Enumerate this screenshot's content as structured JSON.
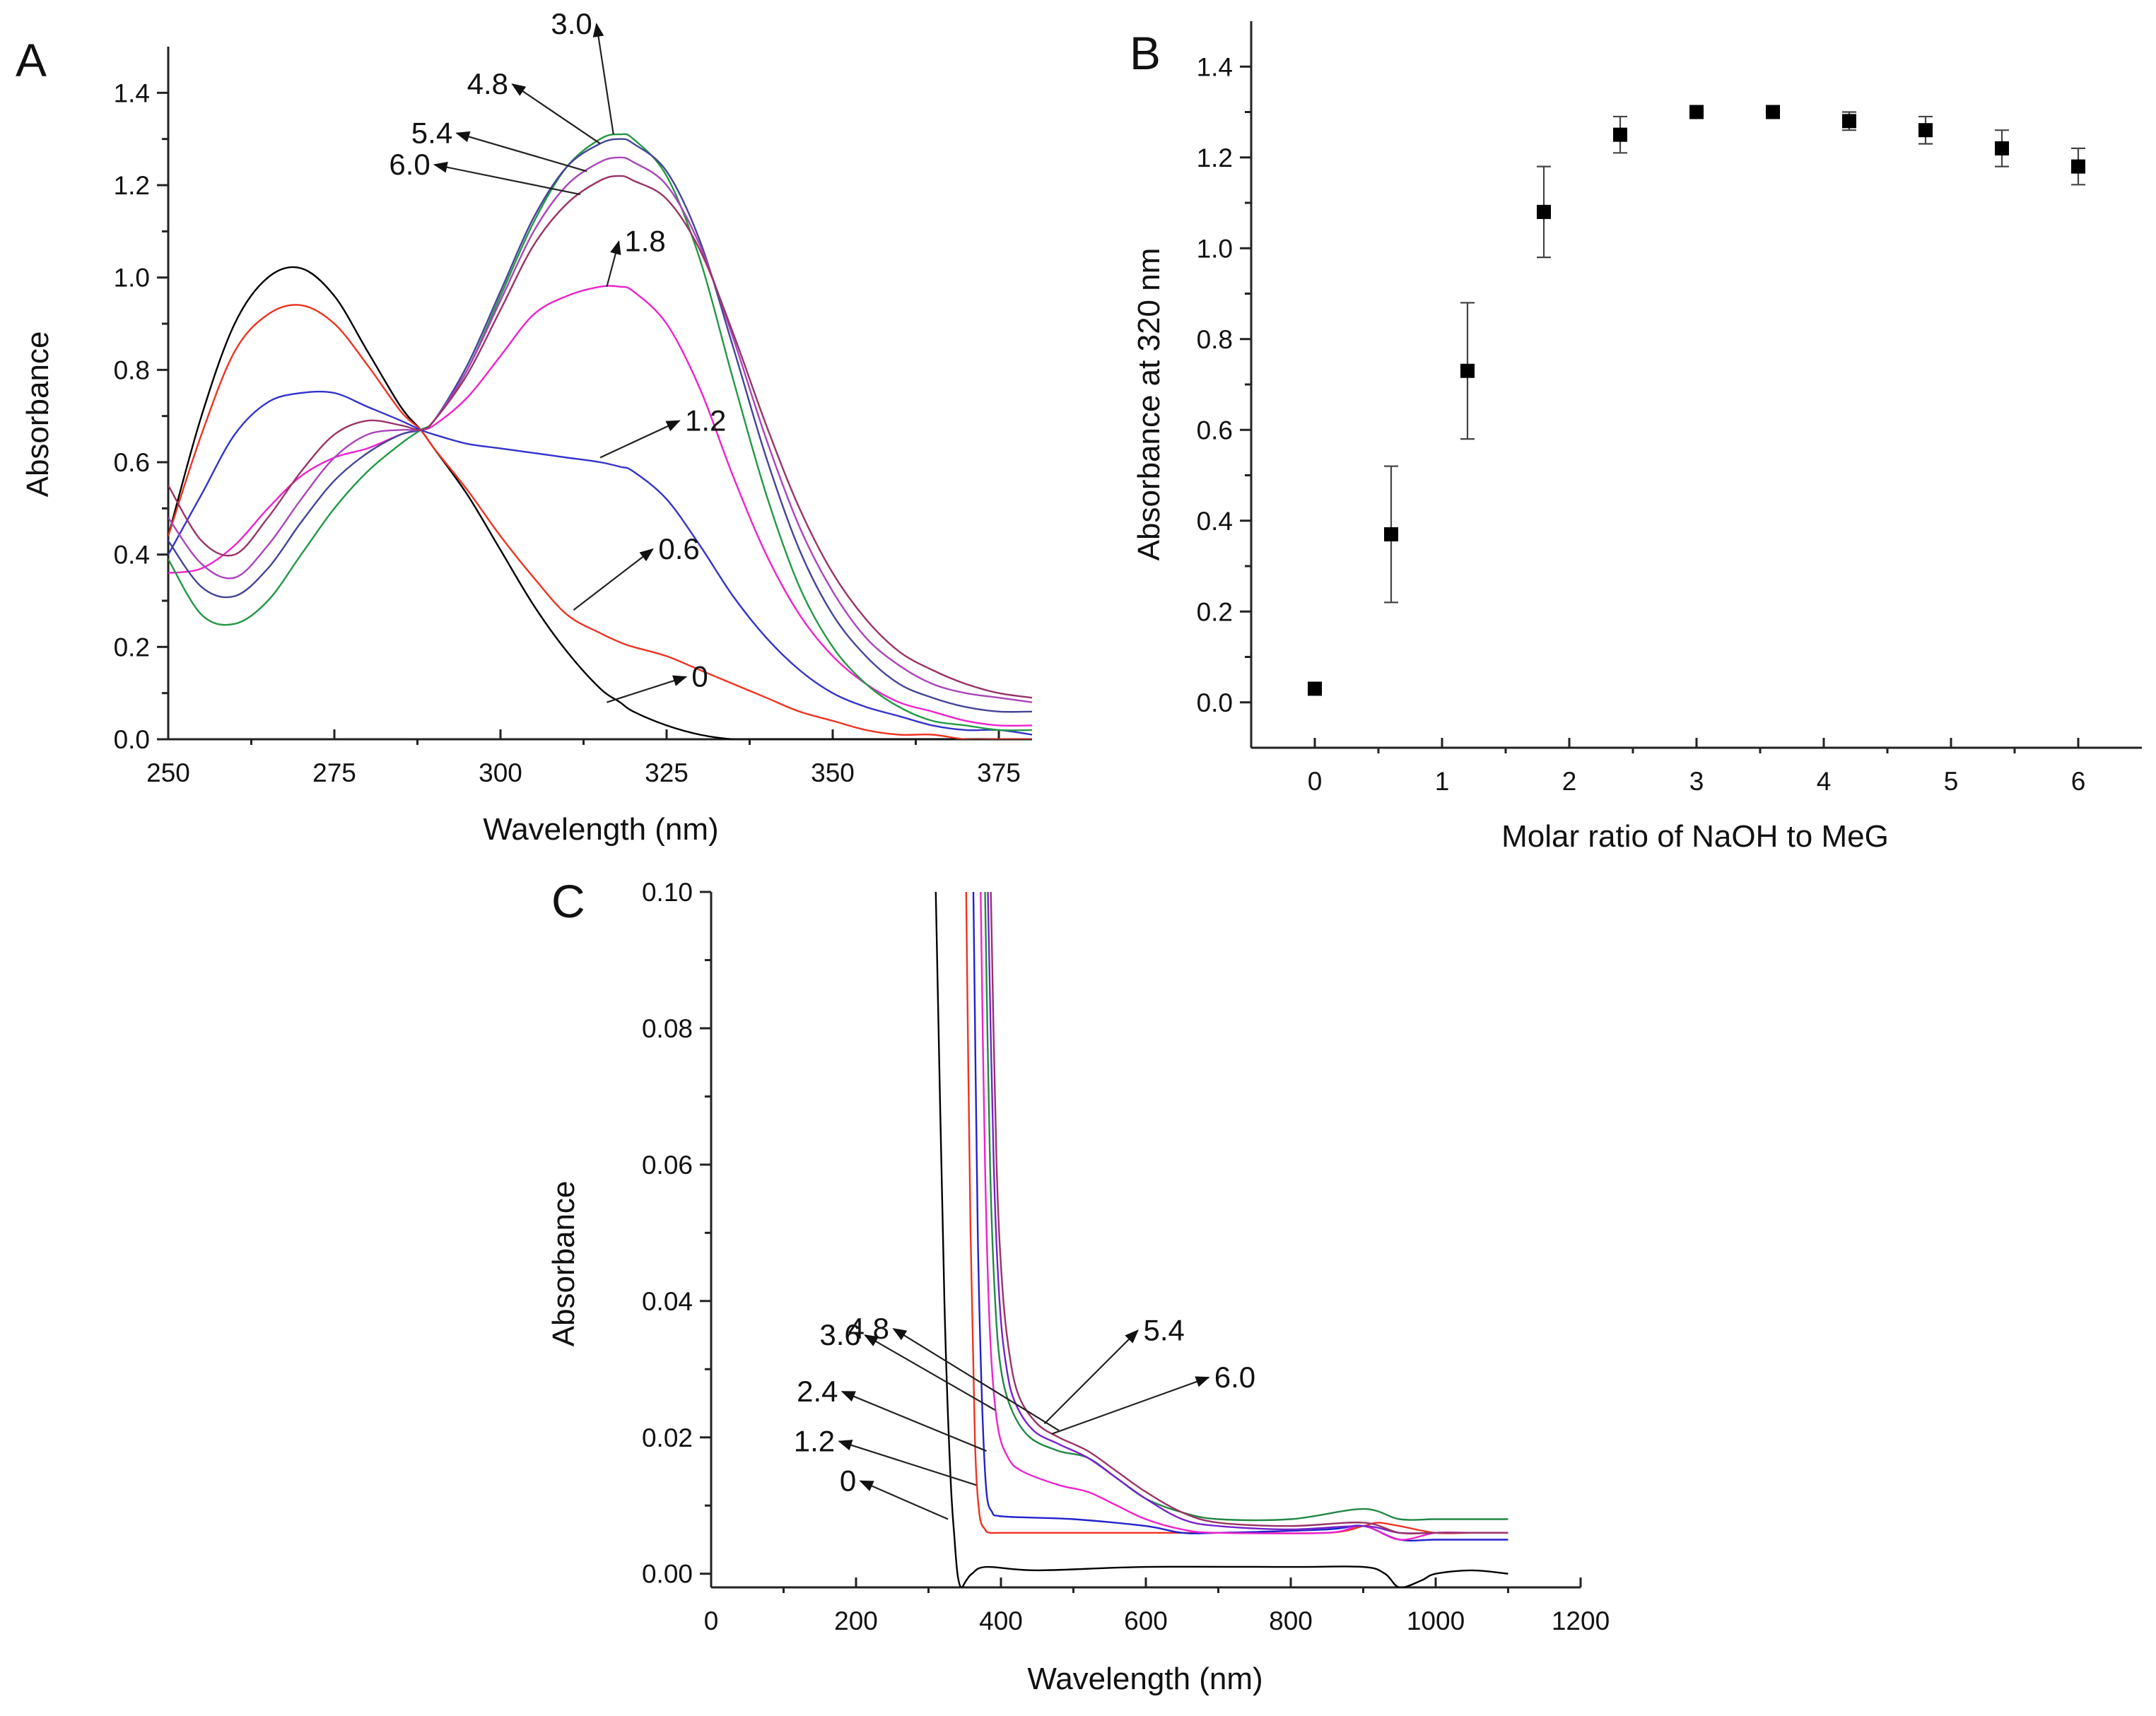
{
  "chart_data": [
    {
      "panel": "A",
      "type": "line",
      "xlabel": "Wavelength (nm)",
      "ylabel": "Absorbance",
      "xlim": [
        250,
        380
      ],
      "ylim": [
        0,
        1.5
      ],
      "xticks": [
        250,
        275,
        300,
        325,
        350,
        375
      ],
      "yticks": [
        0.0,
        0.2,
        0.4,
        0.6,
        0.8,
        1.0,
        1.2,
        1.4
      ],
      "x": [
        250,
        255,
        260,
        265,
        270,
        275,
        280,
        285,
        288,
        290,
        295,
        300,
        305,
        310,
        315,
        318,
        320,
        325,
        330,
        335,
        340,
        345,
        350,
        355,
        360,
        365,
        370,
        375,
        380
      ],
      "series": [
        {
          "name": "0",
          "color": "#000000",
          "values": [
            0.44,
            0.7,
            0.9,
            1.0,
            1.02,
            0.96,
            0.84,
            0.72,
            0.67,
            0.63,
            0.53,
            0.41,
            0.29,
            0.19,
            0.11,
            0.08,
            0.06,
            0.03,
            0.01,
            0.0,
            0.0,
            0.0,
            0.0,
            0.0,
            0.0,
            0.0,
            0.0,
            0.0,
            0.0
          ]
        },
        {
          "name": "0.6",
          "color": "#ee3322",
          "values": [
            0.44,
            0.66,
            0.84,
            0.92,
            0.94,
            0.9,
            0.81,
            0.71,
            0.67,
            0.63,
            0.54,
            0.44,
            0.35,
            0.27,
            0.23,
            0.21,
            0.2,
            0.18,
            0.15,
            0.12,
            0.09,
            0.06,
            0.04,
            0.02,
            0.01,
            0.01,
            0.0,
            0.0,
            0.0
          ]
        },
        {
          "name": "1.2",
          "color": "#3333cc",
          "values": [
            0.4,
            0.53,
            0.66,
            0.73,
            0.75,
            0.75,
            0.72,
            0.69,
            0.67,
            0.66,
            0.64,
            0.63,
            0.62,
            0.61,
            0.6,
            0.59,
            0.58,
            0.52,
            0.42,
            0.31,
            0.22,
            0.15,
            0.1,
            0.07,
            0.05,
            0.03,
            0.02,
            0.02,
            0.01
          ]
        },
        {
          "name": "1.8",
          "color": "#ee22cc",
          "values": [
            0.36,
            0.37,
            0.42,
            0.5,
            0.57,
            0.61,
            0.63,
            0.66,
            0.67,
            0.68,
            0.74,
            0.83,
            0.92,
            0.96,
            0.98,
            0.98,
            0.97,
            0.9,
            0.76,
            0.57,
            0.4,
            0.27,
            0.18,
            0.12,
            0.08,
            0.06,
            0.04,
            0.03,
            0.03
          ]
        },
        {
          "name": "3.0",
          "color": "#229944",
          "values": [
            0.39,
            0.27,
            0.25,
            0.3,
            0.4,
            0.5,
            0.58,
            0.64,
            0.67,
            0.69,
            0.8,
            0.96,
            1.12,
            1.24,
            1.3,
            1.31,
            1.3,
            1.22,
            1.04,
            0.78,
            0.53,
            0.33,
            0.2,
            0.12,
            0.07,
            0.04,
            0.03,
            0.02,
            0.02
          ]
        },
        {
          "name": "4.8",
          "color": "#444499",
          "values": [
            0.43,
            0.33,
            0.31,
            0.37,
            0.47,
            0.56,
            0.62,
            0.66,
            0.67,
            0.69,
            0.81,
            0.97,
            1.13,
            1.24,
            1.29,
            1.3,
            1.29,
            1.23,
            1.08,
            0.85,
            0.61,
            0.41,
            0.27,
            0.18,
            0.12,
            0.09,
            0.07,
            0.06,
            0.06
          ]
        },
        {
          "name": "5.4",
          "color": "#aa44bb",
          "values": [
            0.48,
            0.38,
            0.35,
            0.42,
            0.52,
            0.61,
            0.66,
            0.67,
            0.67,
            0.69,
            0.8,
            0.95,
            1.1,
            1.2,
            1.25,
            1.26,
            1.25,
            1.2,
            1.07,
            0.87,
            0.65,
            0.46,
            0.32,
            0.22,
            0.16,
            0.12,
            0.1,
            0.09,
            0.08
          ]
        },
        {
          "name": "6.0",
          "color": "#993366",
          "values": [
            0.55,
            0.43,
            0.4,
            0.48,
            0.58,
            0.66,
            0.69,
            0.68,
            0.67,
            0.69,
            0.79,
            0.93,
            1.07,
            1.16,
            1.21,
            1.22,
            1.21,
            1.17,
            1.06,
            0.88,
            0.68,
            0.5,
            0.36,
            0.26,
            0.19,
            0.15,
            0.12,
            0.1,
            0.09
          ]
        }
      ],
      "annotations": [
        {
          "text": "3.0",
          "target_x": 317,
          "target_y": 1.31
        },
        {
          "text": "4.8",
          "target_x": 315,
          "target_y": 1.29
        },
        {
          "text": "5.4",
          "target_x": 313,
          "target_y": 1.23
        },
        {
          "text": "6.0",
          "target_x": 312,
          "target_y": 1.18
        },
        {
          "text": "1.8",
          "target_x": 316,
          "target_y": 0.98
        },
        {
          "text": "1.2",
          "target_x": 315,
          "target_y": 0.61
        },
        {
          "text": "0.6",
          "target_x": 311,
          "target_y": 0.28
        },
        {
          "text": "0",
          "target_x": 316,
          "target_y": 0.08
        }
      ]
    },
    {
      "panel": "B",
      "type": "scatter",
      "xlabel": "Molar ratio of NaOH to MeG",
      "ylabel": "Absorbance at 320 nm",
      "xlim": [
        -0.5,
        6.5
      ],
      "ylim": [
        -0.1,
        1.5
      ],
      "xticks": [
        0,
        1,
        2,
        3,
        4,
        5,
        6
      ],
      "yticks": [
        0.0,
        0.2,
        0.4,
        0.6,
        0.8,
        1.0,
        1.2,
        1.4
      ],
      "x": [
        0,
        0.6,
        1.2,
        1.8,
        2.4,
        3.0,
        3.6,
        4.2,
        4.8,
        5.4,
        6.0
      ],
      "values": [
        0.03,
        0.37,
        0.73,
        1.08,
        1.25,
        1.3,
        1.3,
        1.28,
        1.26,
        1.22,
        1.18
      ],
      "errors": [
        0.0,
        0.15,
        0.15,
        0.1,
        0.04,
        0.0,
        0.0,
        0.02,
        0.03,
        0.04,
        0.04
      ]
    },
    {
      "panel": "C",
      "type": "line",
      "xlabel": "Wavelength (nm)",
      "ylabel": "Absorbance",
      "xlim": [
        0,
        1200
      ],
      "ylim": [
        -0.002,
        0.1
      ],
      "xticks": [
        0,
        200,
        400,
        600,
        800,
        1000,
        1200
      ],
      "yticks": [
        0.0,
        0.02,
        0.04,
        0.06,
        0.08,
        0.1
      ],
      "series": [
        {
          "name": "0",
          "color": "#000000",
          "x": [
            310,
            322,
            330,
            336,
            340,
            345,
            352,
            360,
            380,
            450,
            600,
            800,
            900,
            930,
            950,
            980,
            1000,
            1050,
            1100
          ],
          "values": [
            0.1,
            0.04,
            0.015,
            0.005,
            0.0,
            -0.002,
            -0.001,
            0.0,
            0.001,
            0.0005,
            0.001,
            0.001,
            0.001,
            0.0,
            -0.002,
            -0.001,
            0.0,
            0.0005,
            0.0
          ]
        },
        {
          "name": "1.2",
          "color": "#ee3322",
          "x": [
            352,
            358,
            364,
            370,
            378,
            385,
            400,
            500,
            700,
            850,
            900,
            920,
            950,
            1000,
            1050,
            1100
          ],
          "values": [
            0.1,
            0.05,
            0.02,
            0.009,
            0.0065,
            0.006,
            0.006,
            0.006,
            0.006,
            0.006,
            0.007,
            0.0075,
            0.007,
            0.006,
            0.006,
            0.006
          ]
        },
        {
          "name": "2.4",
          "color": "#2222cc",
          "x": [
            362,
            368,
            374,
            380,
            388,
            395,
            420,
            500,
            600,
            650,
            700,
            850,
            900,
            950,
            1000,
            1050,
            1100
          ],
          "values": [
            0.1,
            0.05,
            0.025,
            0.012,
            0.009,
            0.0085,
            0.0083,
            0.008,
            0.007,
            0.006,
            0.006,
            0.0065,
            0.007,
            0.005,
            0.005,
            0.005,
            0.005
          ]
        },
        {
          "name": "3.6",
          "color": "#ee22cc",
          "x": [
            372,
            378,
            385,
            395,
            410,
            430,
            480,
            520,
            560,
            600,
            650,
            700,
            850,
            900,
            950,
            1000,
            1050,
            1100
          ],
          "values": [
            0.1,
            0.06,
            0.035,
            0.022,
            0.017,
            0.015,
            0.013,
            0.012,
            0.01,
            0.008,
            0.0065,
            0.006,
            0.006,
            0.007,
            0.005,
            0.006,
            0.006,
            0.006
          ]
        },
        {
          "name": "4.8",
          "color": "#228844",
          "x": [
            378,
            385,
            392,
            400,
            415,
            440,
            480,
            520,
            560,
            600,
            650,
            700,
            800,
            900,
            950,
            1000,
            1050,
            1100
          ],
          "values": [
            0.1,
            0.06,
            0.04,
            0.03,
            0.024,
            0.02,
            0.018,
            0.017,
            0.014,
            0.011,
            0.009,
            0.008,
            0.008,
            0.0095,
            0.008,
            0.008,
            0.008,
            0.008
          ]
        },
        {
          "name": "5.4",
          "color": "#7722cc",
          "x": [
            382,
            390,
            398,
            408,
            420,
            445,
            480,
            520,
            560,
            600,
            650,
            700,
            800,
            900,
            950,
            1000,
            1050,
            1100
          ],
          "values": [
            0.1,
            0.06,
            0.04,
            0.03,
            0.025,
            0.021,
            0.019,
            0.017,
            0.014,
            0.011,
            0.008,
            0.007,
            0.0065,
            0.007,
            0.006,
            0.006,
            0.006,
            0.006
          ]
        },
        {
          "name": "6.0",
          "color": "#993366",
          "x": [
            386,
            394,
            402,
            412,
            425,
            450,
            480,
            520,
            560,
            600,
            650,
            700,
            800,
            900,
            950,
            1000,
            1050,
            1100
          ],
          "values": [
            0.1,
            0.06,
            0.042,
            0.032,
            0.026,
            0.022,
            0.02,
            0.018,
            0.015,
            0.012,
            0.009,
            0.0075,
            0.007,
            0.0075,
            0.006,
            0.006,
            0.006,
            0.006
          ]
        }
      ],
      "annotations": [
        {
          "text": "4.8",
          "target_x": 480,
          "target_y": 0.021
        },
        {
          "text": "5.4",
          "target_x": 460,
          "target_y": 0.022
        },
        {
          "text": "6.0",
          "target_x": 470,
          "target_y": 0.0205
        },
        {
          "text": "3.6",
          "target_x": 392,
          "target_y": 0.024
        },
        {
          "text": "2.4",
          "target_x": 380,
          "target_y": 0.018
        },
        {
          "text": "1.2",
          "target_x": 366,
          "target_y": 0.013
        },
        {
          "text": "0",
          "target_x": 327,
          "target_y": 0.008
        }
      ]
    }
  ]
}
